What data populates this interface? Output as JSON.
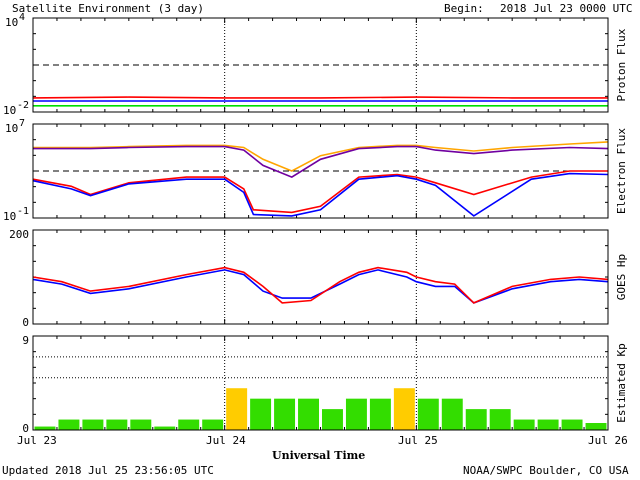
{
  "header": {
    "title": "Satellite Environment (3 day)",
    "begin_label": "Begin:",
    "begin_value": "2018 Jul 23 0000 UTC"
  },
  "footer": {
    "updated": "Updated 2018 Jul 25 23:56:05 UTC",
    "credit": "NOAA/SWPC Boulder, CO USA"
  },
  "x_axis": {
    "xlabel": "Universal Time",
    "ticks": [
      "Jul 23",
      "Jul 24",
      "Jul 25",
      "Jul 26"
    ],
    "range_days": [
      0,
      3
    ]
  },
  "colors": {
    "red": "#ff0000",
    "blue": "#0000ff",
    "green": "#00dd00",
    "orange": "#ffa500",
    "purple": "#7000a0",
    "kp_green": "#33dd00",
    "kp_yellow": "#ffcc00"
  },
  "chart_data": [
    {
      "type": "line",
      "panel": "proton",
      "ylabel": "Proton Flux",
      "scale": "log",
      "ylim": [
        0.01,
        10000
      ],
      "ytick_labels": [
        {
          "base": "10",
          "exp": "4"
        },
        {
          "base": "10",
          "exp": "-2"
        }
      ],
      "threshold": 10,
      "series": [
        {
          "color": "red",
          "x": [
            0,
            0.5,
            1,
            1.5,
            2,
            2.5,
            3
          ],
          "y": [
            0.08,
            0.09,
            0.08,
            0.08,
            0.09,
            0.08,
            0.08
          ]
        },
        {
          "color": "blue",
          "x": [
            0,
            0.5,
            1,
            1.5,
            2,
            2.5,
            3
          ],
          "y": [
            0.05,
            0.05,
            0.05,
            0.05,
            0.05,
            0.05,
            0.05
          ]
        },
        {
          "color": "green",
          "x": [
            0,
            0.5,
            1,
            1.5,
            2,
            2.5,
            3
          ],
          "y": [
            0.025,
            0.025,
            0.025,
            0.025,
            0.025,
            0.025,
            0.025
          ]
        }
      ]
    },
    {
      "type": "line",
      "panel": "electron",
      "ylabel": "Electron Flux",
      "scale": "log",
      "ylim": [
        0.1,
        10000000
      ],
      "ytick_labels": [
        {
          "base": "10",
          "exp": "7"
        },
        {
          "base": "10",
          "exp": "-1"
        }
      ],
      "threshold": 1000,
      "series": [
        {
          "color": "orange",
          "x": [
            0,
            0.1,
            0.3,
            0.5,
            0.8,
            1.0,
            1.1,
            1.2,
            1.35,
            1.5,
            1.7,
            1.9,
            2.0,
            2.1,
            2.3,
            2.5,
            2.8,
            3.0
          ],
          "y": [
            100000,
            100000,
            100000,
            120000,
            150000,
            150000,
            100000,
            10000,
            1000,
            20000,
            100000,
            150000,
            150000,
            100000,
            50000,
            100000,
            200000,
            300000
          ]
        },
        {
          "color": "purple",
          "x": [
            0,
            0.1,
            0.3,
            0.5,
            0.8,
            1.0,
            1.1,
            1.2,
            1.35,
            1.5,
            1.7,
            1.9,
            2.0,
            2.1,
            2.3,
            2.5,
            2.8,
            3.0
          ],
          "y": [
            80000,
            80000,
            80000,
            100000,
            120000,
            120000,
            60000,
            3000,
            300,
            10000,
            80000,
            120000,
            120000,
            60000,
            30000,
            60000,
            100000,
            80000
          ]
        },
        {
          "color": "red",
          "x": [
            0,
            0.2,
            0.3,
            0.5,
            0.8,
            1.0,
            1.1,
            1.15,
            1.35,
            1.5,
            1.7,
            1.9,
            2.0,
            2.1,
            2.3,
            2.6,
            2.8,
            3.0
          ],
          "y": [
            200,
            50,
            10,
            100,
            300,
            300,
            30,
            0.5,
            0.3,
            1,
            300,
            500,
            300,
            100,
            10,
            300,
            1000,
            1000
          ]
        },
        {
          "color": "blue",
          "x": [
            0,
            0.2,
            0.3,
            0.5,
            0.8,
            1.0,
            1.1,
            1.15,
            1.35,
            1.5,
            1.7,
            1.9,
            2.0,
            2.1,
            2.3,
            2.6,
            2.8,
            3.0
          ],
          "y": [
            150,
            30,
            8,
            80,
            200,
            200,
            15,
            0.2,
            0.15,
            0.5,
            200,
            400,
            200,
            60,
            0.15,
            200,
            600,
            500
          ]
        }
      ]
    },
    {
      "type": "line",
      "panel": "goes_hp",
      "ylabel": "GOES Hp",
      "scale": "linear",
      "ylim": [
        0,
        200
      ],
      "ytick_labels": [
        "200",
        "0"
      ],
      "series": [
        {
          "color": "blue",
          "x": [
            0,
            0.15,
            0.3,
            0.5,
            0.8,
            1.0,
            1.1,
            1.2,
            1.3,
            1.45,
            1.6,
            1.7,
            1.8,
            1.95,
            2.0,
            2.1,
            2.2,
            2.3,
            2.5,
            2.7,
            2.85,
            3.0
          ],
          "y": [
            95,
            85,
            65,
            75,
            100,
            115,
            105,
            70,
            55,
            55,
            85,
            105,
            115,
            100,
            90,
            80,
            80,
            45,
            75,
            90,
            95,
            90
          ]
        },
        {
          "color": "red",
          "x": [
            0,
            0.15,
            0.3,
            0.5,
            0.8,
            1.0,
            1.1,
            1.2,
            1.3,
            1.45,
            1.6,
            1.7,
            1.8,
            1.95,
            2.0,
            2.1,
            2.2,
            2.3,
            2.5,
            2.7,
            2.85,
            3.0
          ],
          "y": [
            100,
            90,
            70,
            80,
            105,
            120,
            110,
            80,
            45,
            50,
            90,
            110,
            120,
            110,
            100,
            90,
            85,
            45,
            80,
            95,
            100,
            95
          ]
        }
      ]
    },
    {
      "type": "bar",
      "panel": "kp",
      "ylabel": "Estimated Kp",
      "ylim": [
        0,
        9
      ],
      "ytick_labels": [
        "9",
        "0"
      ],
      "x_start": 0,
      "bar_width_days": 0.125,
      "values": [
        0.33,
        1,
        1,
        1,
        1,
        0.33,
        1,
        1,
        4,
        3,
        3,
        3,
        2,
        3,
        3,
        4,
        3,
        3,
        2,
        2,
        1,
        1,
        1,
        0.67
      ],
      "bar_colors": [
        "kp_green",
        "kp_green",
        "kp_green",
        "kp_green",
        "kp_green",
        "kp_green",
        "kp_green",
        "kp_green",
        "kp_yellow",
        "kp_green",
        "kp_green",
        "kp_green",
        "kp_green",
        "kp_green",
        "kp_green",
        "kp_yellow",
        "kp_green",
        "kp_green",
        "kp_green",
        "kp_green",
        "kp_green",
        "kp_green",
        "kp_green",
        "kp_green"
      ]
    }
  ]
}
